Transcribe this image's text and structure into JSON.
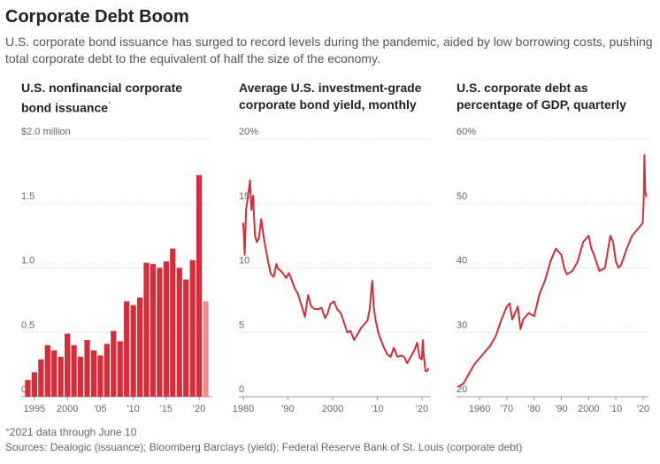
{
  "title": "Corporate Debt Boom",
  "subtitle": "U.S. corporate bond issuance has surged to record levels during the pandemic, aided by low borrowing costs, pushing total corporate debt to the equivalent of half the size of the economy.",
  "colors": {
    "bar": "#d62d3b",
    "bar_partial": "#f28c8c",
    "line": "#d62d3b",
    "grid": "#d0d0d0",
    "axis": "#999999"
  },
  "footnote": "°2021 data through June 10",
  "sources": "Sources: Dealogic (issuance); Bloomberg Barclays (yield); Federal Reserve Bank of St. Louis (corporate debt)",
  "chart_data": [
    {
      "type": "bar",
      "title": "U.S. nonfinancial corporate bond issuance",
      "title_mark": "°",
      "ylim": [
        0,
        2.0
      ],
      "y_ticks": [
        0,
        0.5,
        1.0,
        1.5,
        2.0
      ],
      "y_tick_labels": [
        "0",
        "0.5",
        "1.0",
        "1.5",
        "$2.0 million"
      ],
      "x_tick_labels": [
        {
          "year": 1995,
          "label": "1995"
        },
        {
          "year": 2000,
          "label": "2000"
        },
        {
          "year": 2005,
          "label": "'05"
        },
        {
          "year": 2010,
          "label": "'10"
        },
        {
          "year": 2015,
          "label": "'15"
        },
        {
          "year": 2020,
          "label": "'20"
        }
      ],
      "categories": [
        1994,
        1995,
        1996,
        1997,
        1998,
        1999,
        2000,
        2001,
        2002,
        2003,
        2004,
        2005,
        2006,
        2007,
        2008,
        2009,
        2010,
        2011,
        2012,
        2013,
        2014,
        2015,
        2016,
        2017,
        2018,
        2019,
        2020,
        2021
      ],
      "values": [
        0.13,
        0.19,
        0.29,
        0.4,
        0.36,
        0.31,
        0.49,
        0.4,
        0.31,
        0.44,
        0.36,
        0.32,
        0.41,
        0.51,
        0.43,
        0.74,
        0.71,
        0.77,
        1.04,
        1.03,
        1.0,
        1.05,
        1.15,
        1.0,
        0.91,
        1.06,
        1.72,
        0.74
      ],
      "partial_year": 2021
    },
    {
      "type": "line",
      "title": "Average U.S. investment-grade corporate bond yield, monthly",
      "ylim": [
        0,
        20
      ],
      "y_ticks": [
        0,
        5,
        10,
        15,
        20
      ],
      "y_tick_labels": [
        "0",
        "5",
        "10",
        "15",
        "20%"
      ],
      "x_tick_labels": [
        {
          "year": 1980,
          "label": "1980"
        },
        {
          "year": 1990,
          "label": "'90"
        },
        {
          "year": 2000,
          "label": "2000"
        },
        {
          "year": 2010,
          "label": "'10"
        },
        {
          "year": 2020,
          "label": "'20"
        }
      ],
      "x": [
        1980.0,
        1980.3,
        1980.6,
        1981.0,
        1981.5,
        1981.8,
        1982.2,
        1982.6,
        1983.0,
        1983.5,
        1984.0,
        1984.5,
        1985.0,
        1985.6,
        1986.2,
        1986.8,
        1987.4,
        1987.8,
        1988.3,
        1989.0,
        1989.6,
        1990.2,
        1990.8,
        1991.5,
        1992.2,
        1993.0,
        1993.8,
        1994.5,
        1995.2,
        1996.0,
        1996.8,
        1997.5,
        1998.3,
        1998.9,
        1999.5,
        2000.3,
        2001.0,
        2001.8,
        2002.5,
        2003.3,
        2004.0,
        2004.8,
        2005.5,
        2006.3,
        2007.0,
        2007.8,
        2008.3,
        2008.7,
        2008.9,
        2009.2,
        2009.6,
        2010.2,
        2010.8,
        2011.5,
        2012.2,
        2013.0,
        2013.7,
        2014.5,
        2015.3,
        2016.0,
        2016.7,
        2017.5,
        2018.3,
        2018.9,
        2019.5,
        2020.0,
        2020.2,
        2020.4,
        2020.8,
        2021.2,
        2021.45
      ],
      "values": [
        13.5,
        11.0,
        14.5,
        15.5,
        16.8,
        14.5,
        15.6,
        12.5,
        12.0,
        12.3,
        13.8,
        12.5,
        11.5,
        10.4,
        9.5,
        9.3,
        10.3,
        9.9,
        9.8,
        9.5,
        9.2,
        9.6,
        9.1,
        8.4,
        8.0,
        7.1,
        6.2,
        7.9,
        7.0,
        6.8,
        6.8,
        6.9,
        6.1,
        6.5,
        7.2,
        7.4,
        6.8,
        6.5,
        5.8,
        5.0,
        5.1,
        4.4,
        4.8,
        5.3,
        5.6,
        5.9,
        6.8,
        8.5,
        9.0,
        7.0,
        6.0,
        5.0,
        4.4,
        3.8,
        3.3,
        3.1,
        3.8,
        3.1,
        3.2,
        3.1,
        2.6,
        3.1,
        3.6,
        4.2,
        3.0,
        2.9,
        4.4,
        3.3,
        2.0,
        2.0,
        2.2
      ]
    },
    {
      "type": "line",
      "title": "U.S. corporate debt as percentage of GDP, quarterly",
      "ylim": [
        20,
        60
      ],
      "y_ticks": [
        20,
        30,
        40,
        50,
        60
      ],
      "y_tick_labels": [
        "20",
        "30",
        "40",
        "50",
        "60%"
      ],
      "x_tick_labels": [
        {
          "year": 1960,
          "label": "1960"
        },
        {
          "year": 1970,
          "label": "'70"
        },
        {
          "year": 1980,
          "label": "'80"
        },
        {
          "year": 1990,
          "label": "'90"
        },
        {
          "year": 2000,
          "label": "2000"
        },
        {
          "year": 2010,
          "label": "'10"
        },
        {
          "year": 2020,
          "label": "'20"
        }
      ],
      "x": [
        1952,
        1954,
        1956,
        1958,
        1960,
        1962,
        1964,
        1966,
        1968,
        1970,
        1971,
        1972,
        1974,
        1975,
        1976,
        1978,
        1980,
        1982,
        1984,
        1986,
        1988,
        1990,
        1991,
        1992,
        1994,
        1996,
        1998,
        2000,
        2001,
        2002,
        2004,
        2006,
        2008,
        2009,
        2010,
        2011,
        2012,
        2014,
        2016,
        2018,
        2019,
        2019.9,
        2020.2,
        2020.5,
        2020.8,
        2021.2
      ],
      "values": [
        21.5,
        22,
        23.5,
        25,
        26,
        27,
        28,
        29.5,
        32,
        34,
        34.5,
        32,
        34,
        30.5,
        32,
        33,
        32.5,
        36,
        38,
        41,
        43,
        42,
        40,
        39,
        39.5,
        41,
        44,
        45,
        43,
        42,
        39.5,
        40,
        45,
        44,
        41,
        40,
        40.5,
        43,
        45,
        46,
        46.5,
        47,
        50,
        57.5,
        52,
        51
      ]
    }
  ]
}
